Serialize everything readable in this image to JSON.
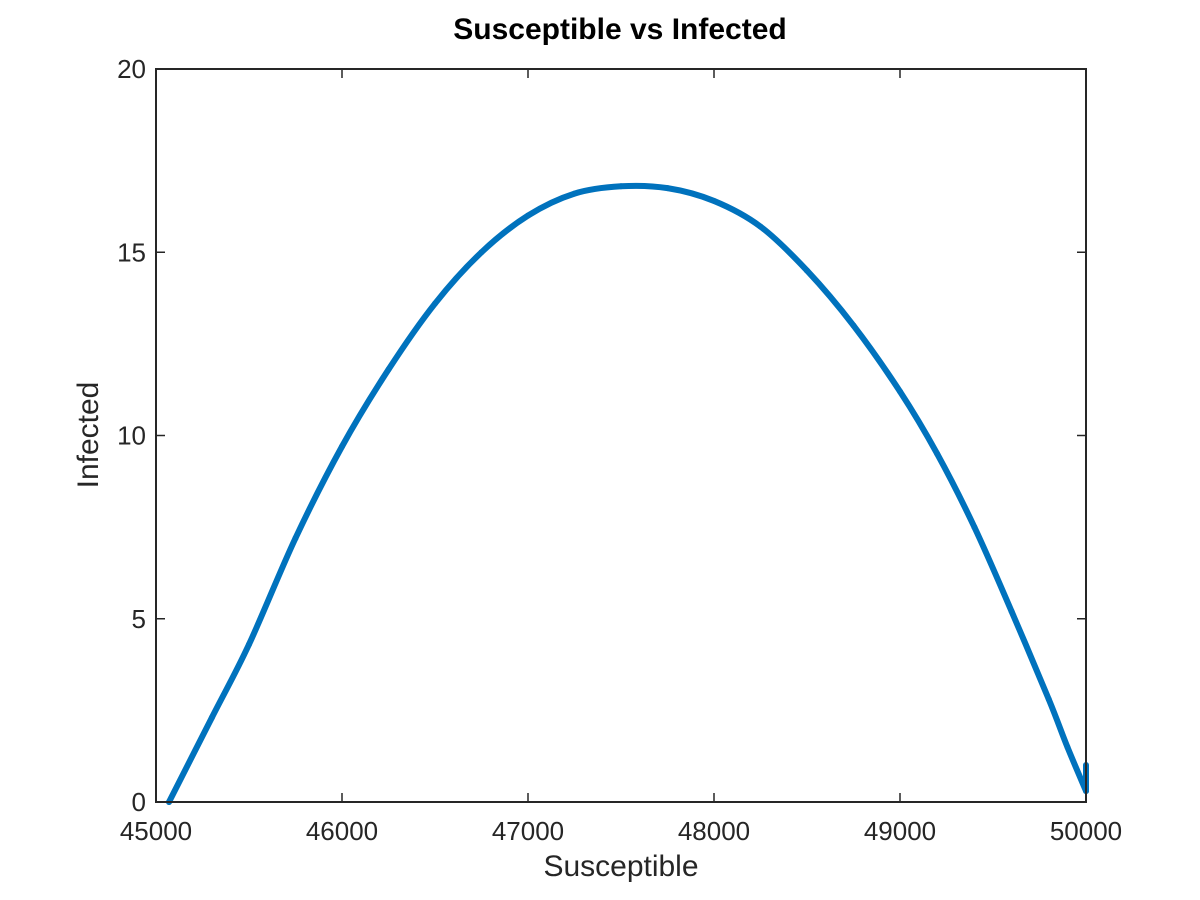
{
  "chart_data": {
    "type": "line",
    "title": "Susceptible vs Infected",
    "xlabel": "Susceptible",
    "ylabel": "Infected",
    "xlim": [
      45000,
      50000
    ],
    "ylim": [
      0,
      20
    ],
    "xticks": [
      45000,
      46000,
      47000,
      48000,
      49000,
      50000
    ],
    "xtick_labels": [
      "45000",
      "46000",
      "47000",
      "48000",
      "49000",
      "50000"
    ],
    "yticks": [
      0,
      5,
      10,
      15,
      20
    ],
    "ytick_labels": [
      "0",
      "5",
      "10",
      "15",
      "20"
    ],
    "grid": false,
    "legend": "none",
    "series": [
      {
        "color": "#0072BD",
        "x": [
          50000,
          49900,
          49800,
          49600,
          49400,
          49200,
          49000,
          48750,
          48500,
          48250,
          48000,
          47750,
          47500,
          47250,
          47000,
          46750,
          46500,
          46250,
          46000,
          45750,
          45500,
          45300,
          45070
        ],
        "y": [
          0.3,
          1.5,
          2.8,
          5.2,
          7.5,
          9.5,
          11.2,
          13.0,
          14.5,
          15.7,
          16.4,
          16.75,
          16.8,
          16.6,
          16.0,
          15.0,
          13.6,
          11.8,
          9.7,
          7.2,
          4.3,
          2.3,
          0.0
        ]
      }
    ]
  }
}
